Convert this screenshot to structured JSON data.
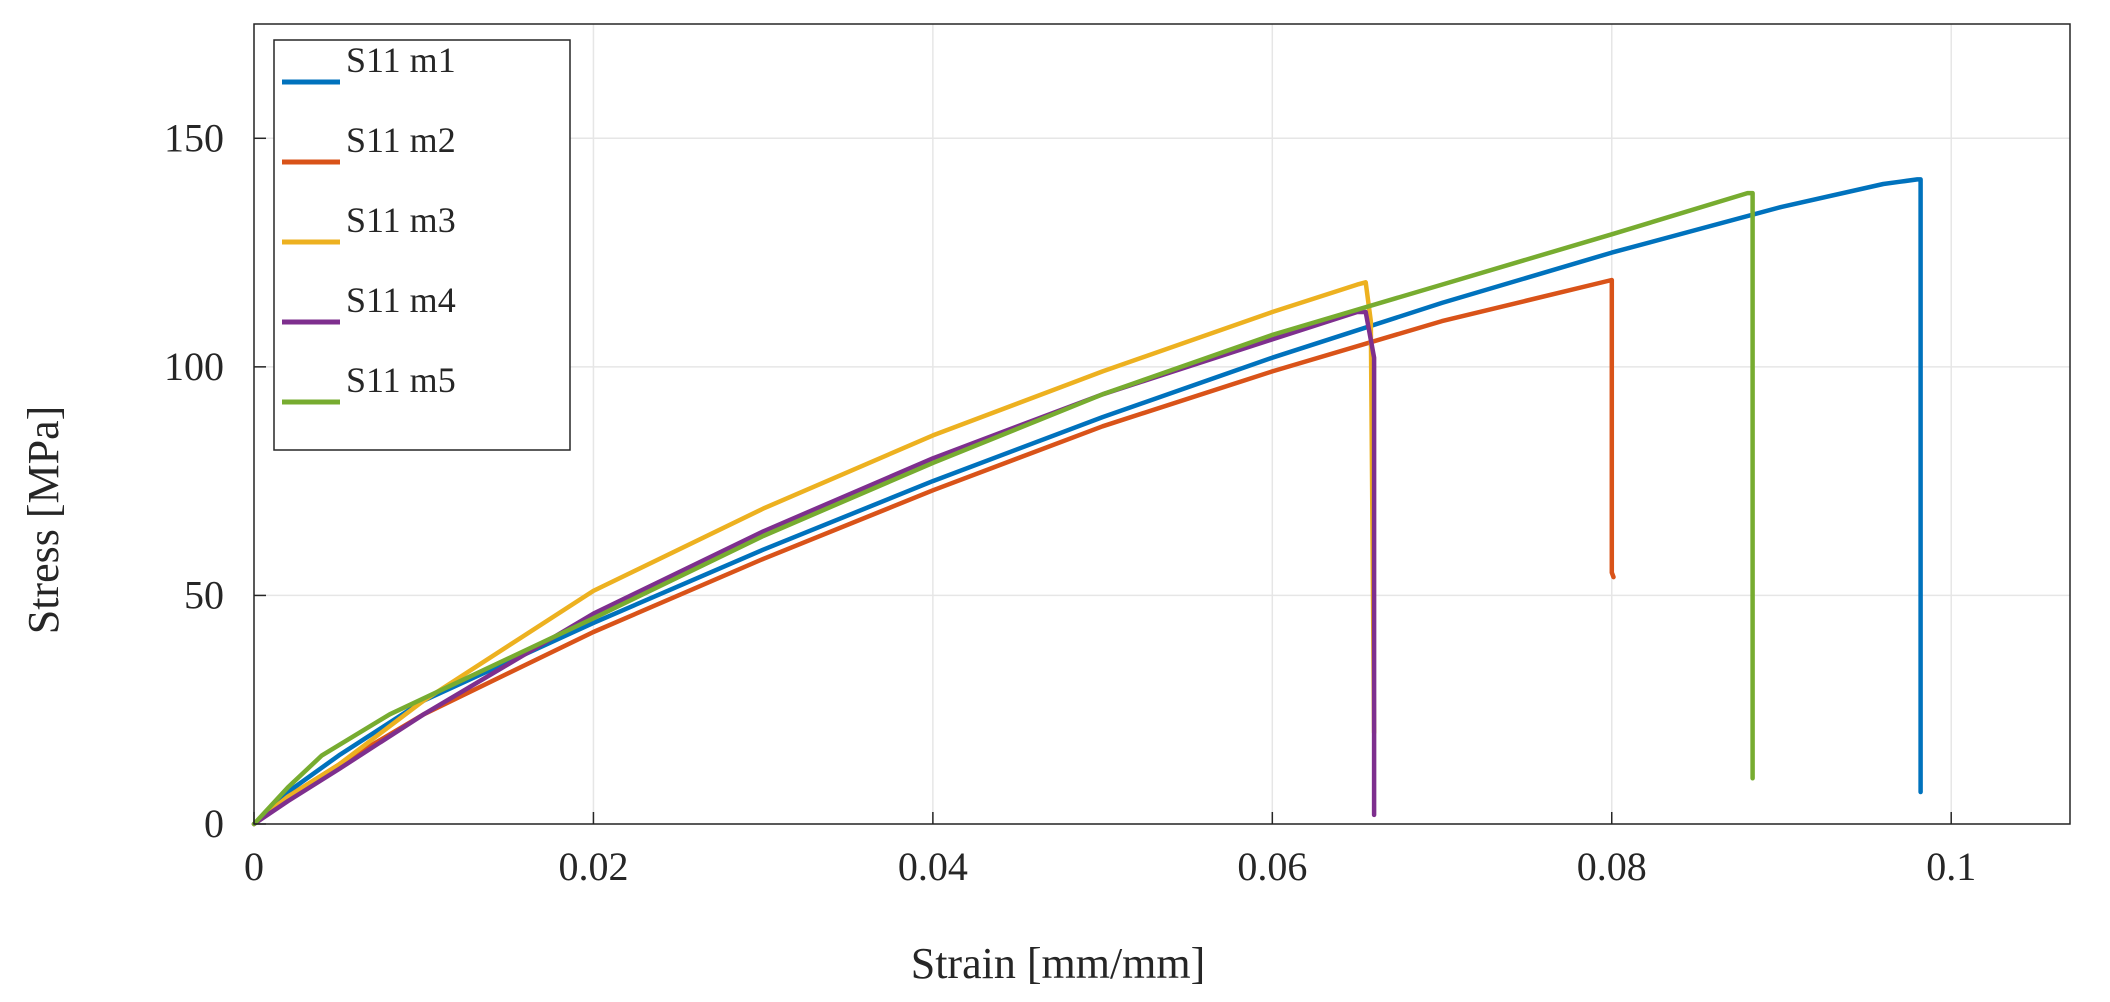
{
  "chart_data": {
    "type": "line",
    "title": "",
    "xlabel": "Strain [mm/mm]",
    "ylabel": "Stress [MPa]",
    "xlim": [
      0,
      0.107
    ],
    "ylim": [
      0,
      175
    ],
    "grid": true,
    "legend_position": "top-left",
    "x_ticks": [
      {
        "value": 0,
        "label": "0"
      },
      {
        "value": 0.02,
        "label": "0.02"
      },
      {
        "value": 0.04,
        "label": "0.04"
      },
      {
        "value": 0.06,
        "label": "0.06"
      },
      {
        "value": 0.08,
        "label": "0.08"
      },
      {
        "value": 0.1,
        "label": "0.1"
      }
    ],
    "y_ticks": [
      {
        "value": 0,
        "label": "0"
      },
      {
        "value": 50,
        "label": "50"
      },
      {
        "value": 100,
        "label": "100"
      },
      {
        "value": 150,
        "label": "150"
      }
    ],
    "series": [
      {
        "name": "S11 m1",
        "color": "#0072BD",
        "x": [
          0,
          0.002,
          0.005,
          0.01,
          0.02,
          0.03,
          0.04,
          0.05,
          0.06,
          0.07,
          0.08,
          0.09,
          0.096,
          0.097,
          0.098,
          0.0982,
          0.0982,
          0.0982
        ],
        "y": [
          0,
          7,
          15,
          27,
          44,
          60,
          75,
          89,
          102,
          114,
          125,
          135,
          140,
          140.5,
          141,
          141,
          132,
          7
        ]
      },
      {
        "name": "S11 m2",
        "color": "#D95319",
        "x": [
          0,
          0.002,
          0.005,
          0.01,
          0.02,
          0.03,
          0.04,
          0.05,
          0.06,
          0.07,
          0.08,
          0.08,
          0.0801
        ],
        "y": [
          0,
          6,
          13,
          24,
          42,
          58,
          73,
          87,
          99,
          110,
          119,
          55,
          54
        ]
      },
      {
        "name": "S11 m3",
        "color": "#EDB120",
        "x": [
          0,
          0.002,
          0.005,
          0.01,
          0.02,
          0.03,
          0.04,
          0.05,
          0.06,
          0.065,
          0.0655,
          0.0658,
          0.066
        ],
        "y": [
          0,
          6,
          13,
          27,
          51,
          69,
          85,
          99,
          112,
          118,
          118.5,
          110,
          20
        ]
      },
      {
        "name": "S11 m4",
        "color": "#7E2F8E",
        "x": [
          0,
          0.002,
          0.005,
          0.01,
          0.02,
          0.03,
          0.04,
          0.05,
          0.06,
          0.065,
          0.0655,
          0.066,
          0.066
        ],
        "y": [
          0,
          5,
          12,
          24,
          46,
          64,
          80,
          94,
          106,
          112,
          112,
          102,
          2
        ]
      },
      {
        "name": "S11 m5",
        "color": "#77AC30",
        "x": [
          0,
          0.002,
          0.004,
          0.008,
          0.012,
          0.02,
          0.03,
          0.04,
          0.05,
          0.06,
          0.07,
          0.08,
          0.088,
          0.0883,
          0.0883
        ],
        "y": [
          0,
          8,
          15,
          24,
          31,
          45,
          63,
          79,
          94,
          107,
          118,
          129,
          138,
          138,
          10
        ]
      }
    ]
  }
}
